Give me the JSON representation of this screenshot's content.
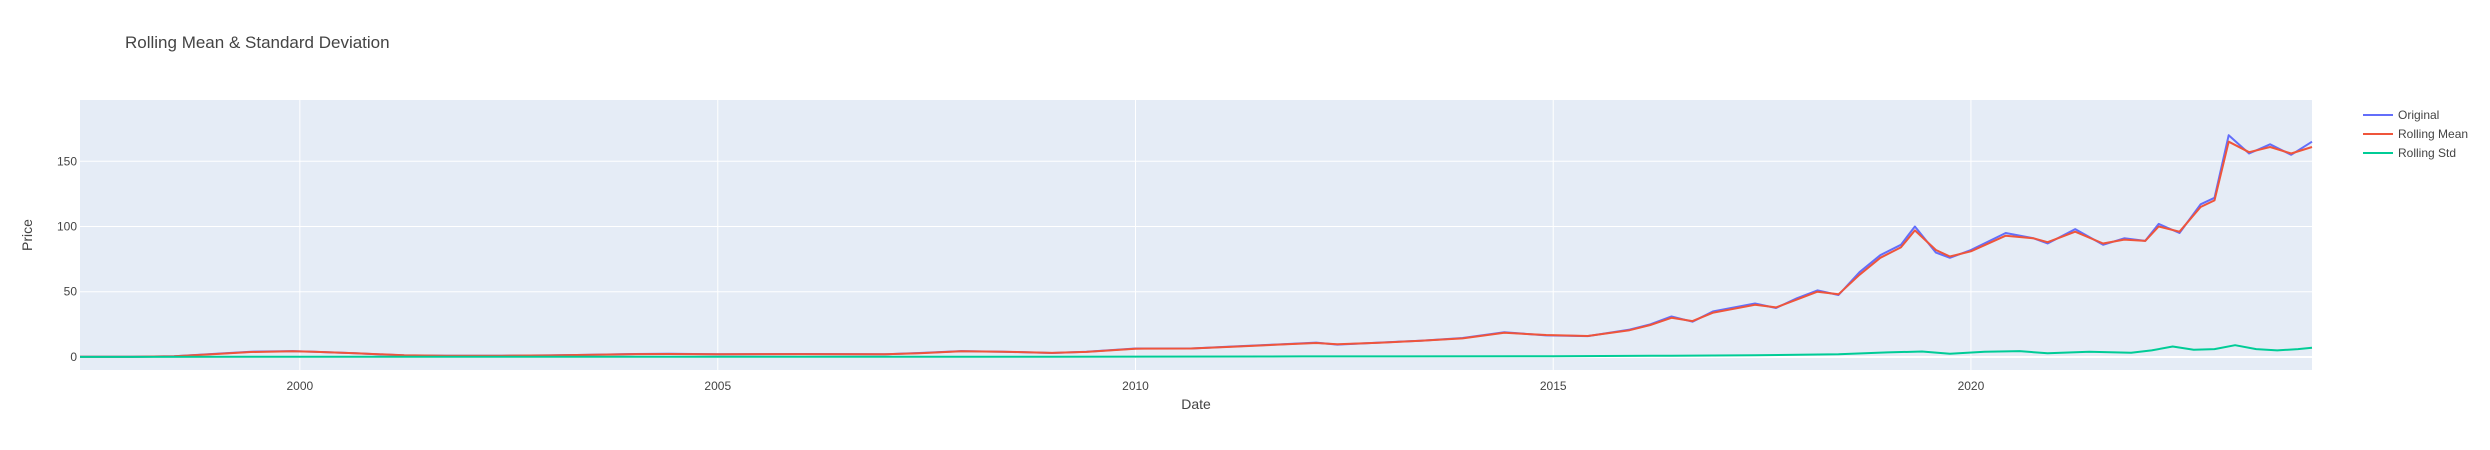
{
  "chart_data": {
    "type": "line",
    "title": "Rolling Mean & Standard Deviation",
    "xlabel": "Date",
    "ylabel": "Price",
    "xlim": [
      "1997-05-15",
      "2024-01-31"
    ],
    "ylim": [
      -10,
      197
    ],
    "x_ticks": [
      {
        "label": "2000",
        "value": "2000-01-01"
      },
      {
        "label": "2005",
        "value": "2005-01-01"
      },
      {
        "label": "2010",
        "value": "2010-01-01"
      },
      {
        "label": "2015",
        "value": "2015-01-01"
      },
      {
        "label": "2020",
        "value": "2020-01-01"
      }
    ],
    "y_ticks": [
      0,
      50,
      100,
      150
    ],
    "grid": true,
    "legend_position": "top-right",
    "plot_background": "#E5ECF6",
    "series": [
      {
        "name": "Original",
        "color": "#636EFA",
        "points": [
          [
            "1997-05-15",
            0.1
          ],
          [
            "1998-01-01",
            0.2
          ],
          [
            "1998-07-01",
            0.5
          ],
          [
            "1999-01-01",
            2.5
          ],
          [
            "1999-06-01",
            4
          ],
          [
            "1999-12-01",
            4.5
          ],
          [
            "2000-03-01",
            4
          ],
          [
            "2000-09-01",
            2.8
          ],
          [
            "2001-04-01",
            1.2
          ],
          [
            "2001-10-01",
            0.9
          ],
          [
            "2002-06-01",
            1
          ],
          [
            "2003-01-01",
            1.2
          ],
          [
            "2003-06-01",
            1.6
          ],
          [
            "2003-12-01",
            2.2
          ],
          [
            "2004-06-01",
            2.4
          ],
          [
            "2005-01-01",
            2.1
          ],
          [
            "2006-01-01",
            2.3
          ],
          [
            "2007-01-01",
            2
          ],
          [
            "2007-06-01",
            3
          ],
          [
            "2007-12-01",
            4.5
          ],
          [
            "2008-06-01",
            4
          ],
          [
            "2009-01-01",
            3
          ],
          [
            "2009-06-01",
            4
          ],
          [
            "2010-01-01",
            6.5
          ],
          [
            "2010-09-01",
            6.5
          ],
          [
            "2011-03-01",
            8
          ],
          [
            "2011-09-01",
            9.5
          ],
          [
            "2012-03-01",
            11
          ],
          [
            "2012-06-01",
            9.5
          ],
          [
            "2012-12-01",
            11
          ],
          [
            "2013-06-01",
            12.5
          ],
          [
            "2013-12-01",
            14.5
          ],
          [
            "2014-06-01",
            19
          ],
          [
            "2014-12-01",
            16.5
          ],
          [
            "2015-06-01",
            16
          ],
          [
            "2015-12-01",
            21
          ],
          [
            "2016-03-01",
            25
          ],
          [
            "2016-06-01",
            31
          ],
          [
            "2016-09-01",
            27
          ],
          [
            "2016-12-01",
            35
          ],
          [
            "2017-06-01",
            41
          ],
          [
            "2017-09-01",
            37.5
          ],
          [
            "2017-12-01",
            45
          ],
          [
            "2018-03-01",
            51
          ],
          [
            "2018-06-01",
            47.5
          ],
          [
            "2018-09-01",
            65
          ],
          [
            "2018-12-01",
            78
          ],
          [
            "2019-03-01",
            86
          ],
          [
            "2019-05-01",
            100
          ],
          [
            "2019-08-01",
            80
          ],
          [
            "2019-10-01",
            76
          ],
          [
            "2020-01-01",
            82
          ],
          [
            "2020-06-01",
            95
          ],
          [
            "2020-10-01",
            91
          ],
          [
            "2020-12-01",
            87
          ],
          [
            "2021-04-01",
            98
          ],
          [
            "2021-08-01",
            86
          ],
          [
            "2021-11-01",
            91
          ],
          [
            "2022-02-01",
            89
          ],
          [
            "2022-04-01",
            102
          ],
          [
            "2022-07-01",
            95
          ],
          [
            "2022-10-01",
            117
          ],
          [
            "2022-12-01",
            122
          ],
          [
            "2023-02-01",
            170
          ],
          [
            "2023-05-01",
            156
          ],
          [
            "2023-08-01",
            163
          ],
          [
            "2023-11-01",
            155
          ],
          [
            "2024-01-31",
            165
          ]
        ]
      },
      {
        "name": "Rolling Mean",
        "color": "#EF553B",
        "points": [
          [
            "1997-05-15",
            0.1
          ],
          [
            "1998-01-01",
            0.2
          ],
          [
            "1998-07-01",
            0.5
          ],
          [
            "1999-01-01",
            2.3
          ],
          [
            "1999-06-01",
            3.8
          ],
          [
            "1999-12-01",
            4.3
          ],
          [
            "2000-03-01",
            4
          ],
          [
            "2000-09-01",
            2.9
          ],
          [
            "2001-04-01",
            1.3
          ],
          [
            "2001-10-01",
            1
          ],
          [
            "2002-06-01",
            1
          ],
          [
            "2003-01-01",
            1.2
          ],
          [
            "2003-06-01",
            1.6
          ],
          [
            "2003-12-01",
            2.1
          ],
          [
            "2004-06-01",
            2.3
          ],
          [
            "2005-01-01",
            2.1
          ],
          [
            "2006-01-01",
            2.2
          ],
          [
            "2007-01-01",
            2
          ],
          [
            "2007-06-01",
            2.9
          ],
          [
            "2007-12-01",
            4.3
          ],
          [
            "2008-06-01",
            4
          ],
          [
            "2009-01-01",
            3.1
          ],
          [
            "2009-06-01",
            3.9
          ],
          [
            "2010-01-01",
            6.3
          ],
          [
            "2010-09-01",
            6.5
          ],
          [
            "2011-03-01",
            7.8
          ],
          [
            "2011-09-01",
            9.3
          ],
          [
            "2012-03-01",
            10.7
          ],
          [
            "2012-06-01",
            9.8
          ],
          [
            "2012-12-01",
            10.9
          ],
          [
            "2013-06-01",
            12.4
          ],
          [
            "2013-12-01",
            14.2
          ],
          [
            "2014-06-01",
            18.5
          ],
          [
            "2014-12-01",
            16.8
          ],
          [
            "2015-06-01",
            16.1
          ],
          [
            "2015-12-01",
            20.5
          ],
          [
            "2016-03-01",
            24.5
          ],
          [
            "2016-06-01",
            30
          ],
          [
            "2016-09-01",
            27.5
          ],
          [
            "2016-12-01",
            34
          ],
          [
            "2017-06-01",
            40
          ],
          [
            "2017-09-01",
            38
          ],
          [
            "2017-12-01",
            44
          ],
          [
            "2018-03-01",
            50
          ],
          [
            "2018-06-01",
            48
          ],
          [
            "2018-09-01",
            63
          ],
          [
            "2018-12-01",
            76
          ],
          [
            "2019-03-01",
            84
          ],
          [
            "2019-05-01",
            97
          ],
          [
            "2019-08-01",
            82
          ],
          [
            "2019-10-01",
            77
          ],
          [
            "2020-01-01",
            81
          ],
          [
            "2020-06-01",
            93
          ],
          [
            "2020-10-01",
            91
          ],
          [
            "2020-12-01",
            88
          ],
          [
            "2021-04-01",
            96
          ],
          [
            "2021-08-01",
            87
          ],
          [
            "2021-11-01",
            90
          ],
          [
            "2022-02-01",
            89
          ],
          [
            "2022-04-01",
            100
          ],
          [
            "2022-07-01",
            96
          ],
          [
            "2022-10-01",
            115
          ],
          [
            "2022-12-01",
            120
          ],
          [
            "2023-02-01",
            165
          ],
          [
            "2023-05-01",
            157
          ],
          [
            "2023-08-01",
            161
          ],
          [
            "2023-11-01",
            156
          ],
          [
            "2024-01-31",
            161
          ]
        ]
      },
      {
        "name": "Rolling Std",
        "color": "#00CC96",
        "points": [
          [
            "1997-05-15",
            0.02
          ],
          [
            "2000-01-01",
            0.2
          ],
          [
            "2003-01-01",
            0.1
          ],
          [
            "2006-01-01",
            0.1
          ],
          [
            "2009-01-01",
            0.2
          ],
          [
            "2012-01-01",
            0.4
          ],
          [
            "2015-01-01",
            0.6
          ],
          [
            "2016-06-01",
            1
          ],
          [
            "2017-06-01",
            1.3
          ],
          [
            "2018-06-01",
            2
          ],
          [
            "2019-01-01",
            3.5
          ],
          [
            "2019-06-01",
            4.2
          ],
          [
            "2019-10-01",
            2.5
          ],
          [
            "2020-03-01",
            4
          ],
          [
            "2020-08-01",
            4.5
          ],
          [
            "2020-12-01",
            2.8
          ],
          [
            "2021-06-01",
            4
          ],
          [
            "2021-12-01",
            3.2
          ],
          [
            "2022-03-01",
            5
          ],
          [
            "2022-06-01",
            8
          ],
          [
            "2022-09-01",
            5.5
          ],
          [
            "2022-12-01",
            6
          ],
          [
            "2023-03-01",
            9
          ],
          [
            "2023-06-01",
            6
          ],
          [
            "2023-09-01",
            5
          ],
          [
            "2023-12-01",
            6
          ],
          [
            "2024-01-31",
            7
          ]
        ]
      }
    ]
  }
}
